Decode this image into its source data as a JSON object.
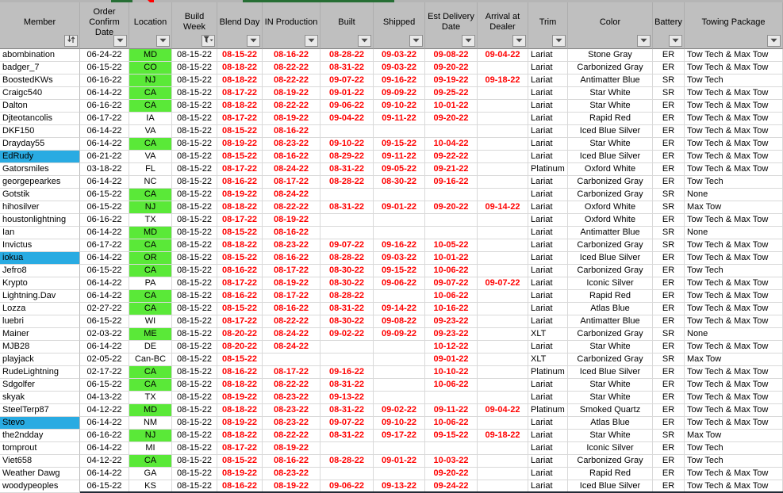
{
  "colors": {
    "header_bg": "#bfbfbf",
    "grid_line": "#d9d9d9",
    "location_highlight_green": "#5AE938",
    "selected_member_blue": "#29ABE2",
    "date_text_red": "#FF0000",
    "accent_dark_green": "#266E34",
    "corner_marker_red": "#FF0000",
    "bottom_border_dark": "#222A35"
  },
  "columns": [
    {
      "id": "member",
      "label": "Member",
      "button": "sort",
      "align": "left",
      "red": false
    },
    {
      "id": "order_confirm",
      "label": "Order Confirm Date",
      "button": "dropdown",
      "align": "center",
      "red": false
    },
    {
      "id": "location",
      "label": "Location",
      "button": "dropdown",
      "align": "center",
      "red": false
    },
    {
      "id": "build_week",
      "label": "Build Week",
      "button": "filter",
      "align": "center",
      "red": false
    },
    {
      "id": "blend_day",
      "label": "Blend Day",
      "button": "dropdown",
      "align": "center",
      "red": true
    },
    {
      "id": "in_production",
      "label": "IN Production",
      "button": "dropdown",
      "align": "center",
      "red": true
    },
    {
      "id": "built",
      "label": "Built",
      "button": "dropdown",
      "align": "center",
      "red": true
    },
    {
      "id": "shipped",
      "label": "Shipped",
      "button": "dropdown",
      "align": "center",
      "red": true
    },
    {
      "id": "est_delivery",
      "label": "Est Delivery Date",
      "button": "dropdown",
      "align": "center",
      "red": true
    },
    {
      "id": "arrival",
      "label": "Arrival at Dealer",
      "button": "dropdown",
      "align": "center",
      "red": true
    },
    {
      "id": "trim",
      "label": "Trim",
      "button": "dropdown",
      "align": "left",
      "red": false
    },
    {
      "id": "color",
      "label": "Color",
      "button": "dropdown",
      "align": "center",
      "red": false
    },
    {
      "id": "battery",
      "label": "Battery",
      "button": "dropdown",
      "align": "center",
      "red": false
    },
    {
      "id": "towing",
      "label": "Towing Package",
      "button": "dropdown",
      "align": "left",
      "red": false
    }
  ],
  "rows": [
    {
      "member": "abombination",
      "sel": false,
      "order_confirm": "06-24-22",
      "location": "MD",
      "loc_green": true,
      "build_week": "08-15-22",
      "blend_day": "08-15-22",
      "in_production": "08-16-22",
      "built": "08-28-22",
      "shipped": "09-03-22",
      "est_delivery": "09-08-22",
      "arrival": "09-04-22",
      "trim": "Lariat",
      "color": "Stone Gray",
      "battery": "ER",
      "towing": "Tow Tech & Max Tow"
    },
    {
      "member": "badger_7",
      "sel": false,
      "order_confirm": "06-15-22",
      "location": "CO",
      "loc_green": true,
      "build_week": "08-15-22",
      "blend_day": "08-18-22",
      "in_production": "08-22-22",
      "built": "08-31-22",
      "shipped": "09-03-22",
      "est_delivery": "09-20-22",
      "arrival": "",
      "trim": "Lariat",
      "color": "Carbonized Gray",
      "battery": "ER",
      "towing": "Tow Tech & Max Tow"
    },
    {
      "member": "BoostedKWs",
      "sel": false,
      "order_confirm": "06-16-22",
      "location": "NJ",
      "loc_green": true,
      "build_week": "08-15-22",
      "blend_day": "08-18-22",
      "in_production": "08-22-22",
      "built": "09-07-22",
      "shipped": "09-16-22",
      "est_delivery": "09-19-22",
      "arrival": "09-18-22",
      "trim": "Lariat",
      "color": "Antimatter Blue",
      "battery": "SR",
      "towing": "Tow Tech"
    },
    {
      "member": "Craigc540",
      "sel": false,
      "order_confirm": "06-14-22",
      "location": "CA",
      "loc_green": true,
      "build_week": "08-15-22",
      "blend_day": "08-17-22",
      "in_production": "08-19-22",
      "built": "09-01-22",
      "shipped": "09-09-22",
      "est_delivery": "09-25-22",
      "arrival": "",
      "trim": "Lariat",
      "color": "Star White",
      "battery": "SR",
      "towing": "Tow Tech & Max Tow"
    },
    {
      "member": "Dalton",
      "sel": false,
      "order_confirm": "06-16-22",
      "location": "CA",
      "loc_green": true,
      "build_week": "08-15-22",
      "blend_day": "08-18-22",
      "in_production": "08-22-22",
      "built": "09-06-22",
      "shipped": "09-10-22",
      "est_delivery": "10-01-22",
      "arrival": "",
      "trim": "Lariat",
      "color": "Star White",
      "battery": "ER",
      "towing": "Tow Tech & Max Tow"
    },
    {
      "member": "Djteotancolis",
      "sel": false,
      "order_confirm": "06-17-22",
      "location": "IA",
      "loc_green": false,
      "build_week": "08-15-22",
      "blend_day": "08-17-22",
      "in_production": "08-19-22",
      "built": "09-04-22",
      "shipped": "09-11-22",
      "est_delivery": "09-20-22",
      "arrival": "",
      "trim": "Lariat",
      "color": "Rapid Red",
      "battery": "ER",
      "towing": "Tow Tech & Max Tow"
    },
    {
      "member": "DKF150",
      "sel": false,
      "order_confirm": "06-14-22",
      "location": "VA",
      "loc_green": false,
      "build_week": "08-15-22",
      "blend_day": "08-15-22",
      "in_production": "08-16-22",
      "built": "",
      "shipped": "",
      "est_delivery": "",
      "arrival": "",
      "trim": "Lariat",
      "color": "Iced Blue Silver",
      "battery": "ER",
      "towing": "Tow Tech & Max Tow"
    },
    {
      "member": "Drayday55",
      "sel": false,
      "order_confirm": "06-14-22",
      "location": "CA",
      "loc_green": true,
      "build_week": "08-15-22",
      "blend_day": "08-19-22",
      "in_production": "08-23-22",
      "built": "09-10-22",
      "shipped": "09-15-22",
      "est_delivery": "10-04-22",
      "arrival": "",
      "trim": "Lariat",
      "color": "Star White",
      "battery": "ER",
      "towing": "Tow Tech & Max Tow"
    },
    {
      "member": "EdRudy",
      "sel": true,
      "order_confirm": "06-21-22",
      "location": "VA",
      "loc_green": false,
      "build_week": "08-15-22",
      "blend_day": "08-15-22",
      "in_production": "08-16-22",
      "built": "08-29-22",
      "shipped": "09-11-22",
      "est_delivery": "09-22-22",
      "arrival": "",
      "trim": "Lariat",
      "color": "Iced Blue Silver",
      "battery": "ER",
      "towing": "Tow Tech & Max Tow"
    },
    {
      "member": "Gatorsmiles",
      "sel": false,
      "order_confirm": "03-18-22",
      "location": "FL",
      "loc_green": false,
      "build_week": "08-15-22",
      "blend_day": "08-17-22",
      "in_production": "08-24-22",
      "built": "08-31-22",
      "shipped": "09-05-22",
      "est_delivery": "09-21-22",
      "arrival": "",
      "trim": "Platinum",
      "color": "Oxford White",
      "battery": "ER",
      "towing": "Tow Tech & Max Tow"
    },
    {
      "member": "georgepearkes",
      "sel": false,
      "order_confirm": "06-14-22",
      "location": "NC",
      "loc_green": false,
      "build_week": "08-15-22",
      "blend_day": "08-16-22",
      "in_production": "08-17-22",
      "built": "08-28-22",
      "shipped": "08-30-22",
      "est_delivery": "09-16-22",
      "arrival": "",
      "trim": "Lariat",
      "color": "Carbonized Gray",
      "battery": "ER",
      "towing": "Tow Tech"
    },
    {
      "member": "Gotstik",
      "sel": false,
      "order_confirm": "06-15-22",
      "location": "CA",
      "loc_green": true,
      "build_week": "08-15-22",
      "blend_day": "08-19-22",
      "in_production": "08-24-22",
      "built": "",
      "shipped": "",
      "est_delivery": "",
      "arrival": "",
      "trim": "Lariat",
      "color": "Carbonized Gray",
      "battery": "SR",
      "towing": "None"
    },
    {
      "member": "hihosilver",
      "sel": false,
      "order_confirm": "06-15-22",
      "location": "NJ",
      "loc_green": true,
      "build_week": "08-15-22",
      "blend_day": "08-18-22",
      "in_production": "08-22-22",
      "built": "08-31-22",
      "shipped": "09-01-22",
      "est_delivery": "09-20-22",
      "arrival": "09-14-22",
      "trim": "Lariat",
      "color": "Oxford White",
      "battery": "SR",
      "towing": "Max Tow"
    },
    {
      "member": "houstonlightning",
      "sel": false,
      "order_confirm": "06-16-22",
      "location": "TX",
      "loc_green": false,
      "build_week": "08-15-22",
      "blend_day": "08-17-22",
      "in_production": "08-19-22",
      "built": "",
      "shipped": "",
      "est_delivery": "",
      "arrival": "",
      "trim": "Lariat",
      "color": "Oxford White",
      "battery": "ER",
      "towing": "Tow Tech & Max Tow"
    },
    {
      "member": "Ian",
      "sel": false,
      "order_confirm": "06-14-22",
      "location": "MD",
      "loc_green": true,
      "build_week": "08-15-22",
      "blend_day": "08-15-22",
      "in_production": "08-16-22",
      "built": "",
      "shipped": "",
      "est_delivery": "",
      "arrival": "",
      "trim": "Lariat",
      "color": "Antimatter Blue",
      "battery": "SR",
      "towing": "None"
    },
    {
      "member": "Invictus",
      "sel": false,
      "order_confirm": "06-17-22",
      "location": "CA",
      "loc_green": true,
      "build_week": "08-15-22",
      "blend_day": "08-18-22",
      "in_production": "08-23-22",
      "built": "09-07-22",
      "shipped": "09-16-22",
      "est_delivery": "10-05-22",
      "arrival": "",
      "trim": "Lariat",
      "color": "Carbonized Gray",
      "battery": "SR",
      "towing": "Tow Tech & Max Tow"
    },
    {
      "member": "iokua",
      "sel": true,
      "order_confirm": "06-14-22",
      "location": "OR",
      "loc_green": true,
      "build_week": "08-15-22",
      "blend_day": "08-15-22",
      "in_production": "08-16-22",
      "built": "08-28-22",
      "shipped": "09-03-22",
      "est_delivery": "10-01-22",
      "arrival": "",
      "trim": "Lariat",
      "color": "Iced Blue Silver",
      "battery": "ER",
      "towing": "Tow Tech & Max Tow"
    },
    {
      "member": "Jefro8",
      "sel": false,
      "order_confirm": "06-15-22",
      "location": "CA",
      "loc_green": true,
      "build_week": "08-15-22",
      "blend_day": "08-16-22",
      "in_production": "08-17-22",
      "built": "08-30-22",
      "shipped": "09-15-22",
      "est_delivery": "10-06-22",
      "arrival": "",
      "trim": "Lariat",
      "color": "Carbonized Gray",
      "battery": "ER",
      "towing": "Tow Tech"
    },
    {
      "member": "Krypto",
      "sel": false,
      "order_confirm": "06-14-22",
      "location": "PA",
      "loc_green": false,
      "build_week": "08-15-22",
      "blend_day": "08-17-22",
      "in_production": "08-19-22",
      "built": "08-30-22",
      "shipped": "09-06-22",
      "est_delivery": "09-07-22",
      "arrival": "09-07-22",
      "trim": "Lariat",
      "color": "Iconic Silver",
      "battery": "ER",
      "towing": "Tow Tech & Max Tow"
    },
    {
      "member": "Lightning.Dav",
      "sel": false,
      "order_confirm": "06-14-22",
      "location": "CA",
      "loc_green": true,
      "build_week": "08-15-22",
      "blend_day": "08-16-22",
      "in_production": "08-17-22",
      "built": "08-28-22",
      "shipped": "",
      "est_delivery": "10-06-22",
      "arrival": "",
      "trim": "Lariat",
      "color": "Rapid Red",
      "battery": "ER",
      "towing": "Tow Tech & Max Tow"
    },
    {
      "member": "Lozza",
      "sel": false,
      "order_confirm": "02-27-22",
      "location": "CA",
      "loc_green": true,
      "build_week": "08-15-22",
      "blend_day": "08-15-22",
      "in_production": "08-16-22",
      "built": "08-31-22",
      "shipped": "09-14-22",
      "est_delivery": "10-16-22",
      "arrival": "",
      "trim": "Lariat",
      "color": "Atlas Blue",
      "battery": "ER",
      "towing": "Tow Tech & Max Tow"
    },
    {
      "member": "luebri",
      "sel": false,
      "order_confirm": "06-15-22",
      "location": "WI",
      "loc_green": false,
      "build_week": "08-15-22",
      "blend_day": "08-17-22",
      "in_production": "08-22-22",
      "built": "08-30-22",
      "shipped": "09-08-22",
      "est_delivery": "09-23-22",
      "arrival": "",
      "trim": "Lariat",
      "color": "Antimatter Blue",
      "battery": "ER",
      "towing": "Tow Tech & Max Tow"
    },
    {
      "member": "Mainer",
      "sel": false,
      "order_confirm": "02-03-22",
      "location": "ME",
      "loc_green": true,
      "build_week": "08-15-22",
      "blend_day": "08-20-22",
      "in_production": "08-24-22",
      "built": "09-02-22",
      "shipped": "09-09-22",
      "est_delivery": "09-23-22",
      "arrival": "",
      "trim": "XLT",
      "color": "Carbonized Gray",
      "battery": "SR",
      "towing": "None"
    },
    {
      "member": "MJB28",
      "sel": false,
      "order_confirm": "06-14-22",
      "location": "DE",
      "loc_green": false,
      "build_week": "08-15-22",
      "blend_day": "08-20-22",
      "in_production": "08-24-22",
      "built": "",
      "shipped": "",
      "est_delivery": "10-12-22",
      "arrival": "",
      "trim": "Lariat",
      "color": "Star White",
      "battery": "ER",
      "towing": "Tow Tech & Max Tow"
    },
    {
      "member": "playjack",
      "sel": false,
      "order_confirm": "02-05-22",
      "location": "Can-BC",
      "loc_green": false,
      "build_week": "08-15-22",
      "blend_day": "08-15-22",
      "in_production": "",
      "built": "",
      "shipped": "",
      "est_delivery": "09-01-22",
      "arrival": "",
      "trim": "XLT",
      "color": "Carbonized Gray",
      "battery": "SR",
      "towing": "Max Tow"
    },
    {
      "member": "RudeLightning",
      "sel": false,
      "order_confirm": "02-17-22",
      "location": "CA",
      "loc_green": true,
      "build_week": "08-15-22",
      "blend_day": "08-16-22",
      "in_production": "08-17-22",
      "built": "09-16-22",
      "shipped": "",
      "est_delivery": "10-10-22",
      "arrival": "",
      "trim": "Platinum",
      "color": "Iced Blue Silver",
      "battery": "ER",
      "towing": "Tow Tech & Max Tow"
    },
    {
      "member": "Sdgolfer",
      "sel": false,
      "order_confirm": "06-15-22",
      "location": "CA",
      "loc_green": true,
      "build_week": "08-15-22",
      "blend_day": "08-18-22",
      "in_production": "08-22-22",
      "built": "08-31-22",
      "shipped": "",
      "est_delivery": "10-06-22",
      "arrival": "",
      "trim": "Lariat",
      "color": "Star White",
      "battery": "ER",
      "towing": "Tow Tech & Max Tow"
    },
    {
      "member": "skyak",
      "sel": false,
      "order_confirm": "04-13-22",
      "location": "TX",
      "loc_green": false,
      "build_week": "08-15-22",
      "blend_day": "08-19-22",
      "in_production": "08-23-22",
      "built": "09-13-22",
      "shipped": "",
      "est_delivery": "",
      "arrival": "",
      "trim": "Lariat",
      "color": "Star White",
      "battery": "ER",
      "towing": "Tow Tech & Max Tow"
    },
    {
      "member": "SteelTerp87",
      "sel": false,
      "order_confirm": "04-12-22",
      "location": "MD",
      "loc_green": true,
      "build_week": "08-15-22",
      "blend_day": "08-18-22",
      "in_production": "08-23-22",
      "built": "08-31-22",
      "shipped": "09-02-22",
      "est_delivery": "09-11-22",
      "arrival": "09-04-22",
      "trim": "Platinum",
      "color": "Smoked Quartz",
      "battery": "ER",
      "towing": "Tow Tech & Max Tow"
    },
    {
      "member": "Stevo",
      "sel": true,
      "order_confirm": "06-14-22",
      "location": "NM",
      "loc_green": false,
      "build_week": "08-15-22",
      "blend_day": "08-19-22",
      "in_production": "08-23-22",
      "built": "09-07-22",
      "shipped": "09-10-22",
      "est_delivery": "10-06-22",
      "arrival": "",
      "trim": "Lariat",
      "color": "Atlas Blue",
      "battery": "ER",
      "towing": "Tow Tech & Max Tow"
    },
    {
      "member": "the2ndday",
      "sel": false,
      "order_confirm": "06-16-22",
      "location": "NJ",
      "loc_green": true,
      "build_week": "08-15-22",
      "blend_day": "08-18-22",
      "in_production": "08-22-22",
      "built": "08-31-22",
      "shipped": "09-17-22",
      "est_delivery": "09-15-22",
      "arrival": "09-18-22",
      "trim": "Lariat",
      "color": "Star White",
      "battery": "SR",
      "towing": "Max Tow"
    },
    {
      "member": "tomprout",
      "sel": false,
      "order_confirm": "06-14-22",
      "location": "MI",
      "loc_green": false,
      "build_week": "08-15-22",
      "blend_day": "08-17-22",
      "in_production": "08-19-22",
      "built": "",
      "shipped": "",
      "est_delivery": "",
      "arrival": "",
      "trim": "Lariat",
      "color": "Iconic Silver",
      "battery": "ER",
      "towing": "Tow Tech"
    },
    {
      "member": "Viet658",
      "sel": false,
      "order_confirm": "04-12-22",
      "location": "CA",
      "loc_green": true,
      "build_week": "08-15-22",
      "blend_day": "08-15-22",
      "in_production": "08-16-22",
      "built": "08-28-22",
      "shipped": "09-01-22",
      "est_delivery": "10-03-22",
      "arrival": "",
      "trim": "Lariat",
      "color": "Carbonized Gray",
      "battery": "ER",
      "towing": "Tow Tech"
    },
    {
      "member": "Weather Dawg",
      "sel": false,
      "order_confirm": "06-14-22",
      "location": "GA",
      "loc_green": false,
      "build_week": "08-15-22",
      "blend_day": "08-19-22",
      "in_production": "08-23-22",
      "built": "",
      "shipped": "",
      "est_delivery": "09-20-22",
      "arrival": "",
      "trim": "Lariat",
      "color": "Rapid Red",
      "battery": "ER",
      "towing": "Tow Tech & Max Tow"
    },
    {
      "member": "woodypeoples",
      "sel": false,
      "order_confirm": "06-15-22",
      "location": "KS",
      "loc_green": false,
      "build_week": "08-15-22",
      "blend_day": "08-16-22",
      "in_production": "08-19-22",
      "built": "09-06-22",
      "shipped": "09-13-22",
      "est_delivery": "09-24-22",
      "arrival": "",
      "trim": "Lariat",
      "color": "Iced Blue Silver",
      "battery": "ER",
      "towing": "Tow Tech & Max Tow"
    }
  ]
}
